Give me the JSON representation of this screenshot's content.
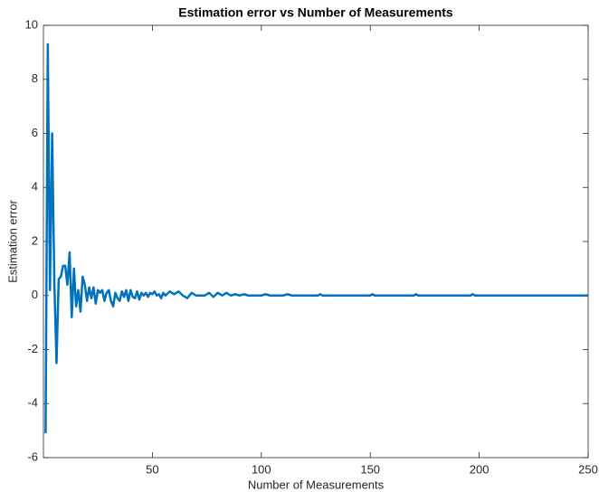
{
  "chart_data": {
    "type": "line",
    "title": "Estimation error vs Number of Measurements",
    "xlabel": "Number of Measurements",
    "ylabel": "Estimation error",
    "x": [
      1,
      2,
      3,
      4,
      5,
      6,
      7,
      8,
      9,
      10,
      11,
      12,
      13,
      14,
      15,
      16,
      17,
      18,
      19,
      20,
      21,
      22,
      23,
      24,
      25,
      26,
      27,
      28,
      29,
      30,
      31,
      32,
      33,
      34,
      35,
      36,
      37,
      38,
      39,
      40,
      41,
      42,
      43,
      44,
      45,
      46,
      47,
      48,
      49,
      50,
      51,
      52,
      53,
      54,
      55,
      56,
      58,
      60,
      62,
      64,
      66,
      68,
      70,
      74,
      76,
      78,
      80,
      82,
      84,
      86,
      88,
      90,
      92,
      94,
      100,
      102,
      104,
      110,
      112,
      114,
      126,
      127,
      128,
      150,
      151,
      152,
      170,
      171,
      172,
      196,
      197,
      198,
      250
    ],
    "series": [
      {
        "name": "Estimation error",
        "color": "#0072bd",
        "values": [
          -5.1,
          9.3,
          0.2,
          6.0,
          0.5,
          -2.5,
          0.6,
          0.7,
          1.1,
          1.1,
          0.4,
          1.6,
          -0.8,
          1.0,
          -0.4,
          0.2,
          -0.6,
          0.7,
          0.4,
          -0.2,
          0.3,
          -0.1,
          0.3,
          -0.3,
          0.2,
          0.1,
          0.2,
          -0.2,
          0.1,
          0.2,
          -0.2,
          -0.4,
          0.1,
          -0.1,
          -0.2,
          0.15,
          -0.05,
          0.2,
          -0.2,
          0.2,
          -0.05,
          -0.1,
          0.15,
          -0.15,
          0.1,
          0,
          0.1,
          -0.05,
          0.1,
          0.05,
          0.15,
          0,
          0.05,
          -0.1,
          0.1,
          0,
          0.15,
          0.05,
          0.15,
          0,
          -0.1,
          0.1,
          0,
          0,
          0.1,
          -0.05,
          0.1,
          0,
          0.1,
          0,
          0.05,
          0,
          0.05,
          0,
          0,
          0.05,
          0,
          0,
          0.05,
          0,
          0,
          0.05,
          0,
          0,
          0.05,
          0,
          0,
          0.05,
          0,
          0,
          0.05,
          0,
          0
        ]
      }
    ],
    "xlim": [
      0,
      250
    ],
    "xticks": [
      50,
      100,
      150,
      200,
      250
    ],
    "ylim": [
      -6,
      10
    ],
    "yticks": [
      -6,
      -4,
      -2,
      0,
      2,
      4,
      6,
      8,
      10
    ],
    "grid": false
  }
}
